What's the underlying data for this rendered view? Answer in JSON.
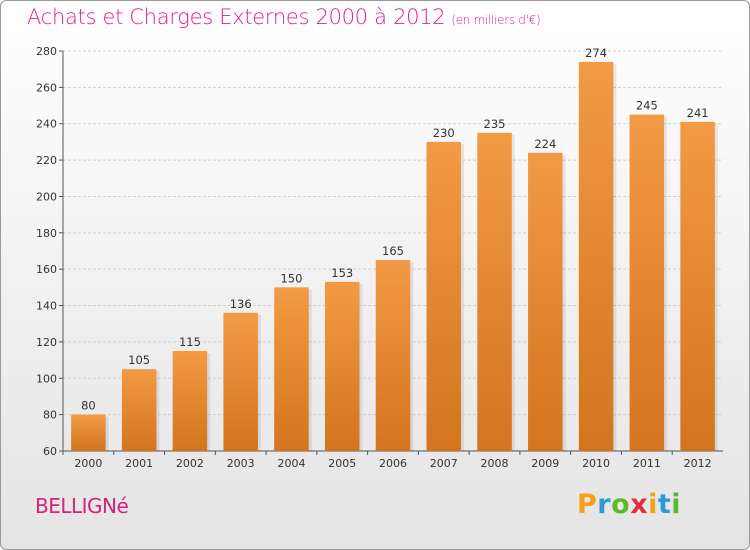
{
  "chart_data": {
    "type": "bar",
    "title": "Achats et Charges Externes 2000 à 2012",
    "subtitle": "(en milliers d'€)",
    "categories": [
      "2000",
      "2001",
      "2002",
      "2003",
      "2004",
      "2005",
      "2006",
      "2007",
      "2008",
      "2009",
      "2010",
      "2011",
      "2012"
    ],
    "values": [
      80,
      105,
      115,
      136,
      150,
      153,
      165,
      230,
      235,
      224,
      274,
      245,
      241
    ],
    "ylim": [
      60,
      280
    ],
    "yticks": [
      60,
      80,
      100,
      120,
      140,
      160,
      180,
      200,
      220,
      240,
      260,
      280
    ],
    "grid": true,
    "legend": "none",
    "bar_color": "#f29a45",
    "bar_color_dark": "#d4741e"
  },
  "footer": {
    "place": "BELLIGNé",
    "logo": [
      "P",
      "r",
      "o",
      "x",
      "i",
      "t",
      "i"
    ],
    "logo_colors": [
      "#f5a11a",
      "#2e9ad8",
      "#5cb82e",
      "#e22d3e",
      "#f5a11a",
      "#2e9ad8",
      "#5cb82e"
    ]
  }
}
